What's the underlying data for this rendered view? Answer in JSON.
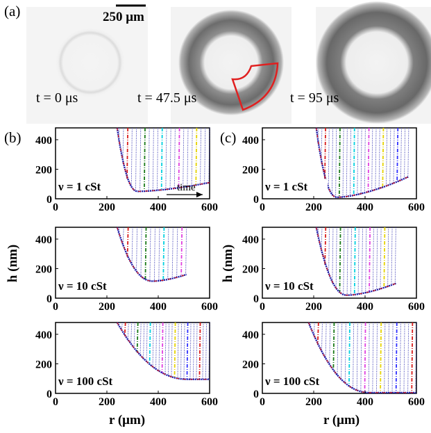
{
  "figure": {
    "panel_labels": [
      "(a)",
      "(b)",
      "(c)"
    ],
    "scale_bar_label": "250 μm",
    "snapshots": [
      {
        "time_label": "t = 0 μs"
      },
      {
        "time_label": "t = 47.5 μs"
      },
      {
        "time_label": "t = 95 μs"
      }
    ],
    "time_arrow_label": "time",
    "ylabel": "h (nm)",
    "xlabel": "r (μm)",
    "colors": {
      "profile": "#1a1aa8",
      "highlight": [
        "#d81b1b",
        "#1a7a1a",
        "#00d0e0",
        "#e040e0",
        "#e6d300",
        "#3030ff"
      ],
      "sector_outline": "#e02020"
    }
  },
  "chart_data": [
    {
      "type": "line",
      "panel": "(b)",
      "nu_label": "ν = 1 cSt",
      "xlim": [
        0,
        600
      ],
      "ylim": [
        0,
        480
      ],
      "xticks": [
        "0",
        "200",
        "400",
        "600"
      ],
      "yticks": [
        "0",
        "200",
        "400"
      ],
      "min_h": 50,
      "r_min_at_hmin": 240,
      "r_hmin": 320,
      "r_max": 600,
      "h_at_rmax": 110,
      "n_profiles": 22,
      "y_top": 480
    },
    {
      "type": "line",
      "panel": "(c)",
      "nu_label": "ν = 1 cSt",
      "xlim": [
        0,
        600
      ],
      "ylim": [
        0,
        480
      ],
      "xticks": [
        "0",
        "200",
        "400",
        "600"
      ],
      "yticks": [
        "0",
        "200",
        "400"
      ],
      "min_h": 10,
      "r_min_at_hmin": 210,
      "r_hmin": 290,
      "r_max": 570,
      "h_at_rmax": 150,
      "n_profiles": 26,
      "y_top": 480
    },
    {
      "type": "line",
      "panel": "(b)",
      "nu_label": "ν = 10 cSt",
      "xlim": [
        0,
        600
      ],
      "ylim": [
        0,
        480
      ],
      "xticks": [
        "0",
        "200",
        "400",
        "600"
      ],
      "yticks": [
        "0",
        "200",
        "400"
      ],
      "min_h": 115,
      "r_min_at_hmin": 240,
      "r_hmin": 380,
      "r_max": 510,
      "h_at_rmax": 160,
      "n_profiles": 16,
      "y_top": 480
    },
    {
      "type": "line",
      "panel": "(c)",
      "nu_label": "ν = 10 cSt",
      "xlim": [
        0,
        600
      ],
      "ylim": [
        0,
        480
      ],
      "xticks": [
        "0",
        "200",
        "400",
        "600"
      ],
      "yticks": [
        "0",
        "200",
        "400"
      ],
      "min_h": 20,
      "r_min_at_hmin": 210,
      "r_hmin": 330,
      "r_max": 520,
      "h_at_rmax": 100,
      "n_profiles": 22,
      "y_top": 480
    },
    {
      "type": "line",
      "panel": "(b)",
      "nu_label": "ν = 100 cSt",
      "xlim": [
        0,
        600
      ],
      "ylim": [
        0,
        480
      ],
      "xticks": [
        "0",
        "200",
        "400",
        "600"
      ],
      "yticks": [
        "0",
        "200",
        "400"
      ],
      "min_h": 95,
      "r_min_at_hmin": 240,
      "r_hmin": 520,
      "r_max": 600,
      "h_at_rmax": 95,
      "n_profiles": 30,
      "y_top": 480
    },
    {
      "type": "line",
      "panel": "(c)",
      "nu_label": "ν = 100 cSt",
      "xlim": [
        0,
        600
      ],
      "ylim": [
        0,
        480
      ],
      "xticks": [
        "0",
        "200",
        "400",
        "600"
      ],
      "yticks": [
        "0",
        "200",
        "400"
      ],
      "min_h": 5,
      "r_min_at_hmin": 180,
      "r_hmin": 420,
      "r_max": 600,
      "h_at_rmax": 5,
      "n_profiles": 28,
      "y_top": 480
    }
  ]
}
